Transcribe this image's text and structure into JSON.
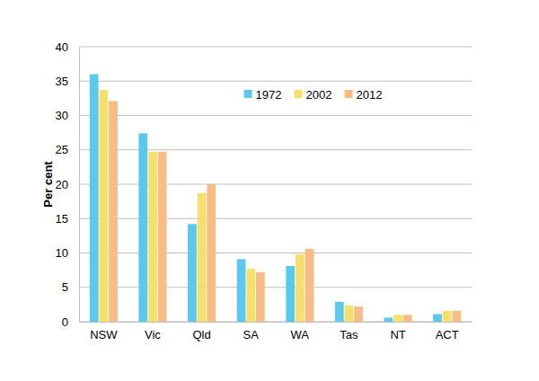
{
  "chart_data": {
    "type": "bar",
    "y_label": "Per cent",
    "categories": [
      "NSW",
      "Vic",
      "Qld",
      "SA",
      "WA",
      "Tas",
      "NT",
      "ACT"
    ],
    "series": [
      {
        "name": "1972",
        "color": "#5bc8ec",
        "values": [
          36.0,
          27.4,
          14.2,
          9.1,
          8.1,
          2.9,
          0.6,
          1.1
        ]
      },
      {
        "name": "2002",
        "color": "#f5e06e",
        "values": [
          33.7,
          24.7,
          18.7,
          7.7,
          9.8,
          2.4,
          1.0,
          1.6
        ]
      },
      {
        "name": "2012",
        "color": "#f7bd85",
        "values": [
          32.1,
          24.7,
          20.0,
          7.2,
          10.6,
          2.2,
          1.0,
          1.6
        ]
      }
    ],
    "ylim": [
      0,
      40
    ],
    "yticks": [
      0,
      5,
      10,
      15,
      20,
      25,
      30,
      35,
      40
    ],
    "grid": true,
    "legend": "top"
  }
}
